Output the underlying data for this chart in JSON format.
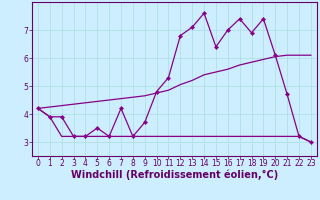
{
  "x_values": [
    0,
    1,
    2,
    3,
    4,
    5,
    6,
    7,
    8,
    9,
    10,
    11,
    12,
    13,
    14,
    15,
    16,
    17,
    18,
    19,
    20,
    21,
    22,
    23
  ],
  "line_main_y": [
    4.2,
    3.9,
    3.9,
    3.2,
    3.2,
    3.5,
    3.2,
    4.2,
    3.2,
    3.7,
    4.8,
    5.3,
    6.8,
    7.1,
    7.6,
    6.4,
    7.0,
    7.4,
    6.9,
    7.4,
    6.1,
    4.7,
    3.2,
    3.0
  ],
  "line_max_y": [
    4.2,
    4.25,
    4.3,
    4.35,
    4.4,
    4.45,
    4.5,
    4.55,
    4.6,
    4.65,
    4.75,
    4.85,
    5.05,
    5.2,
    5.4,
    5.5,
    5.6,
    5.75,
    5.85,
    5.95,
    6.05,
    6.1,
    6.1,
    6.1
  ],
  "line_min_y": [
    4.2,
    3.9,
    3.2,
    3.2,
    3.2,
    3.2,
    3.2,
    3.2,
    3.2,
    3.2,
    3.2,
    3.2,
    3.2,
    3.2,
    3.2,
    3.2,
    3.2,
    3.2,
    3.2,
    3.2,
    3.2,
    3.2,
    3.2,
    3.0
  ],
  "xlim": [
    -0.5,
    23.5
  ],
  "ylim": [
    2.5,
    8.0
  ],
  "yticks": [
    3,
    4,
    5,
    6,
    7
  ],
  "xticks": [
    0,
    1,
    2,
    3,
    4,
    5,
    6,
    7,
    8,
    9,
    10,
    11,
    12,
    13,
    14,
    15,
    16,
    17,
    18,
    19,
    20,
    21,
    22,
    23
  ],
  "xlabel": "Windchill (Refroidissement éolien,°C)",
  "line_color": "#880088",
  "bg_color": "#cceeff",
  "grid_color": "#aadddd",
  "axis_color": "#660066",
  "tick_fontsize": 5.5,
  "label_fontsize": 7.0
}
